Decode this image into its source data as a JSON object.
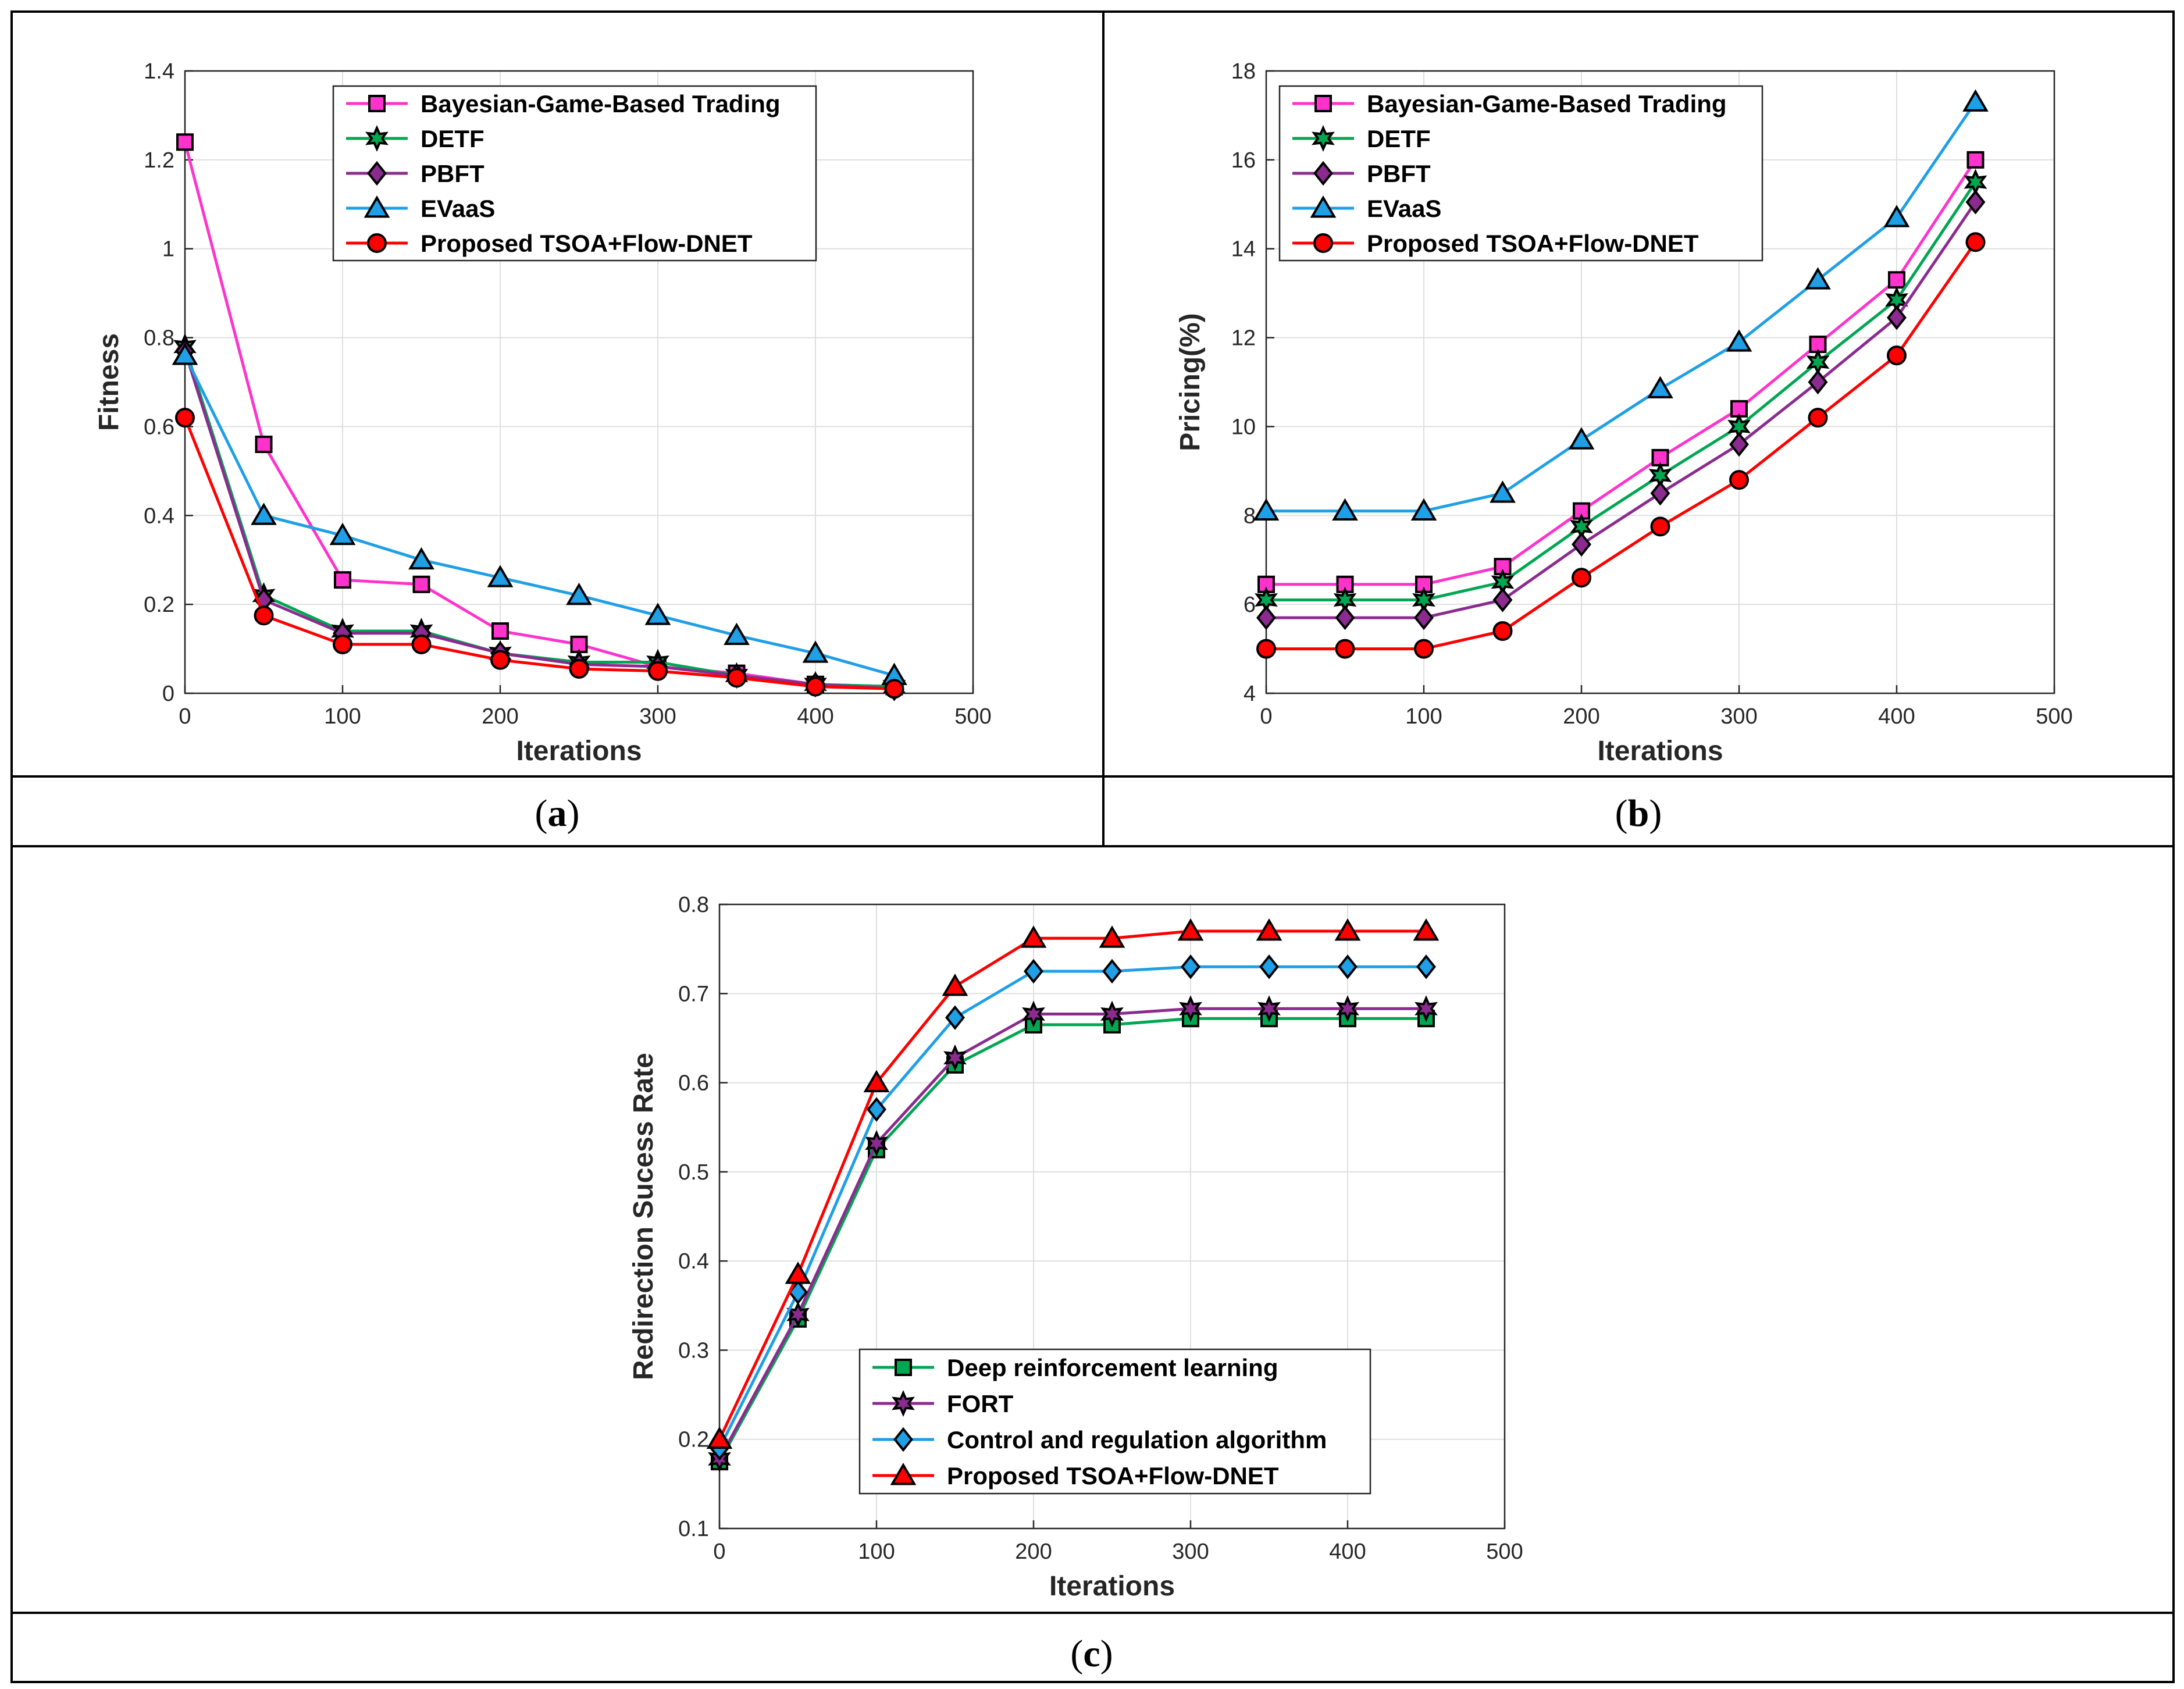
{
  "colors": {
    "bayesian": "#ff33cc",
    "detf": "#00a651",
    "pbft": "#8b2b8f",
    "evaas": "#1e9fe6",
    "proposed": "#ff0000",
    "drl": "#00a651",
    "fort": "#8b2b8f",
    "control": "#1e9fe6",
    "edge": "#000000"
  },
  "captions": {
    "a": {
      "open": "(",
      "letter": "a",
      "close": ")"
    },
    "b": {
      "open": "(",
      "letter": "b",
      "close": ")"
    },
    "c": {
      "open": "(",
      "letter": "c",
      "close": ")"
    }
  },
  "chart_data": [
    {
      "id": "a",
      "type": "line",
      "xlabel": "Iterations",
      "ylabel": "Fitness",
      "xlim": [
        0,
        500
      ],
      "ylim": [
        0,
        1.4
      ],
      "xticks": [
        0,
        100,
        200,
        300,
        400,
        500
      ],
      "yticks": [
        0,
        0.2,
        0.4,
        0.6,
        0.8,
        1,
        1.2,
        1.4
      ],
      "grid": true,
      "legend": "top-right",
      "x": [
        0,
        50,
        100,
        150,
        200,
        250,
        300,
        350,
        400,
        450
      ],
      "series": [
        {
          "name": "Bayesian-Game-Based Trading",
          "color": "bayesian",
          "marker": "square",
          "values": [
            1.24,
            0.56,
            0.255,
            0.245,
            0.14,
            0.11,
            0.06,
            0.045,
            0.02,
            0.015
          ]
        },
        {
          "name": "DETF",
          "color": "detf",
          "marker": "hexagram",
          "values": [
            0.78,
            0.22,
            0.14,
            0.14,
            0.09,
            0.07,
            0.07,
            0.04,
            0.02,
            0.015
          ]
        },
        {
          "name": "PBFT",
          "color": "pbft",
          "marker": "diamond",
          "values": [
            0.77,
            0.21,
            0.135,
            0.135,
            0.09,
            0.065,
            0.06,
            0.04,
            0.02,
            0.01
          ]
        },
        {
          "name": "EVaaS",
          "color": "evaas",
          "marker": "triangle",
          "values": [
            0.76,
            0.4,
            0.355,
            0.3,
            0.26,
            0.22,
            0.175,
            0.13,
            0.09,
            0.04
          ]
        },
        {
          "name": "Proposed TSOA+Flow-DNET",
          "color": "proposed",
          "marker": "circle",
          "values": [
            0.62,
            0.175,
            0.11,
            0.11,
            0.075,
            0.055,
            0.05,
            0.035,
            0.015,
            0.01
          ]
        }
      ]
    },
    {
      "id": "b",
      "type": "line",
      "xlabel": "Iterations",
      "ylabel": "Pricing(%)",
      "xlim": [
        0,
        500
      ],
      "ylim": [
        4,
        18
      ],
      "xticks": [
        0,
        100,
        200,
        300,
        400,
        500
      ],
      "yticks": [
        4,
        6,
        8,
        10,
        12,
        14,
        16,
        18
      ],
      "grid": true,
      "legend": "top-left",
      "x": [
        0,
        50,
        100,
        150,
        200,
        250,
        300,
        350,
        400,
        450
      ],
      "series": [
        {
          "name": "Bayesian-Game-Based Trading",
          "color": "bayesian",
          "marker": "square",
          "values": [
            6.45,
            6.45,
            6.45,
            6.85,
            8.1,
            9.3,
            10.4,
            11.85,
            13.3,
            16.0
          ]
        },
        {
          "name": "DETF",
          "color": "detf",
          "marker": "hexagram",
          "values": [
            6.1,
            6.1,
            6.1,
            6.5,
            7.75,
            8.9,
            10.0,
            11.45,
            12.85,
            15.5
          ]
        },
        {
          "name": "PBFT",
          "color": "pbft",
          "marker": "diamond",
          "values": [
            5.7,
            5.7,
            5.7,
            6.1,
            7.35,
            8.5,
            9.6,
            11.0,
            12.45,
            15.05
          ]
        },
        {
          "name": "EVaaS",
          "color": "evaas",
          "marker": "triangle",
          "values": [
            8.1,
            8.1,
            8.1,
            8.5,
            9.7,
            10.85,
            11.9,
            13.3,
            14.7,
            17.3
          ]
        },
        {
          "name": "Proposed TSOA+Flow-DNET",
          "color": "proposed",
          "marker": "circle",
          "values": [
            5.0,
            5.0,
            5.0,
            5.4,
            6.6,
            7.75,
            8.8,
            10.2,
            11.6,
            14.15
          ]
        }
      ]
    },
    {
      "id": "c",
      "type": "line",
      "xlabel": "Iterations",
      "ylabel": "Redirection Sucess Rate",
      "xlim": [
        0,
        500
      ],
      "ylim": [
        0.1,
        0.8
      ],
      "xticks": [
        0,
        100,
        200,
        300,
        400,
        500
      ],
      "yticks": [
        0.1,
        0.2,
        0.3,
        0.4,
        0.5,
        0.6,
        0.7,
        0.8
      ],
      "grid": true,
      "legend": "bottom-center",
      "x": [
        0,
        50,
        100,
        150,
        200,
        250,
        300,
        350,
        400,
        450
      ],
      "series": [
        {
          "name": "Deep reinforcement learning",
          "color": "drl",
          "marker": "square",
          "values": [
            0.175,
            0.335,
            0.525,
            0.62,
            0.665,
            0.665,
            0.672,
            0.672,
            0.672,
            0.672
          ]
        },
        {
          "name": "FORT",
          "color": "fort",
          "marker": "hexagram",
          "values": [
            0.178,
            0.34,
            0.532,
            0.628,
            0.677,
            0.677,
            0.683,
            0.683,
            0.683,
            0.683
          ]
        },
        {
          "name": "Control and regulation algorithm",
          "color": "control",
          "marker": "diamond",
          "values": [
            0.19,
            0.365,
            0.57,
            0.673,
            0.725,
            0.725,
            0.73,
            0.73,
            0.73,
            0.73
          ]
        },
        {
          "name": "Proposed TSOA+Flow-DNET",
          "color": "proposed",
          "marker": "triangle",
          "values": [
            0.2,
            0.385,
            0.6,
            0.708,
            0.762,
            0.762,
            0.77,
            0.77,
            0.77,
            0.77
          ]
        }
      ]
    }
  ]
}
